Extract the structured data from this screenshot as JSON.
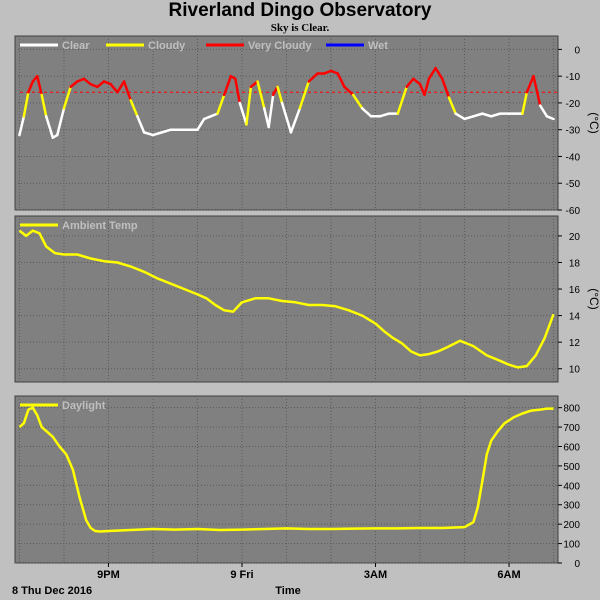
{
  "header": {
    "title": "Riverland Dingo Observatory",
    "subtitle": "Sky is Clear."
  },
  "footer": {
    "date_label": "8 Thu Dec 2016",
    "xlabel": "Time"
  },
  "colors": {
    "background": "#c0c0c0",
    "panel": "#808080",
    "grid": "#5a5a5a",
    "clear": "#ffffff",
    "cloudy": "#ffff00",
    "very_cloudy": "#ff0000",
    "wet": "#0000ff",
    "threshold": "#ff0000"
  },
  "chart_data": [
    {
      "type": "line",
      "legend": [
        "Clear",
        "Cloudy",
        "Very Cloudy",
        "Wet"
      ],
      "ylabel": "(°C)",
      "ylim": [
        -60,
        5
      ],
      "yticks": [
        0,
        -10,
        -20,
        -30,
        -40,
        -50,
        -60
      ],
      "threshold": -16,
      "x_ticks": [
        "9PM",
        "9 Fri",
        "3AM",
        "6AM"
      ],
      "x_tick_hours": [
        21,
        24,
        27,
        30
      ],
      "xlim_hours": [
        18.9,
        31.1
      ],
      "series": [
        {
          "x": [
            19.0,
            19.1,
            19.2,
            19.3,
            19.4,
            19.5,
            19.6,
            19.75,
            19.85,
            20.0,
            20.15,
            20.3,
            20.45,
            20.6,
            20.75,
            20.9,
            21.05,
            21.2,
            21.35,
            21.5,
            21.65,
            21.8,
            22.0,
            22.2,
            22.4,
            22.6,
            22.8,
            23.0,
            23.15,
            23.3,
            23.45,
            23.6,
            23.75,
            23.85,
            23.95,
            24.1,
            24.2,
            24.35,
            24.5,
            24.6,
            24.7,
            24.8,
            24.9,
            25.1,
            25.3,
            25.5,
            25.7,
            25.85,
            26.0,
            26.15,
            26.3,
            26.5,
            26.7,
            26.9,
            27.1,
            27.3,
            27.5,
            27.7,
            27.85,
            28.0,
            28.1,
            28.2,
            28.35,
            28.5,
            28.65,
            28.8,
            29.0,
            29.2,
            29.4,
            29.6,
            29.8,
            30.0,
            30.1,
            30.2,
            30.3,
            30.4,
            30.55,
            30.7,
            30.85,
            31.0
          ],
          "values": [
            -32,
            -25,
            -16,
            -12,
            -10,
            -17,
            -25,
            -33,
            -32,
            -22,
            -14,
            -12,
            -11,
            -13,
            -14,
            -12,
            -13,
            -16,
            -12,
            -19,
            -25,
            -31,
            -32,
            -31,
            -30,
            -30,
            -30,
            -30,
            -26,
            -25,
            -24,
            -17,
            -10,
            -11,
            -20,
            -28,
            -14,
            -12,
            -22,
            -29,
            -17,
            -14,
            -20,
            -31,
            -22,
            -12,
            -9,
            -9,
            -8,
            -9,
            -14,
            -17,
            -22,
            -25,
            -25,
            -24,
            -24,
            -14,
            -11,
            -13,
            -17,
            -11,
            -7,
            -11,
            -18,
            -24,
            -26,
            -25,
            -24,
            -25,
            -24,
            -24,
            -24,
            -24,
            -24,
            -16,
            -10,
            -21,
            -25,
            -26
          ]
        }
      ]
    },
    {
      "type": "line",
      "legend": [
        "Ambient Temp"
      ],
      "ylabel": "(°C)",
      "ylim": [
        9,
        21.5
      ],
      "yticks": [
        20,
        18,
        16,
        14,
        12,
        10
      ],
      "x_ticks": [
        "9PM",
        "9 Fri",
        "3AM",
        "6AM"
      ],
      "x_tick_hours": [
        21,
        24,
        27,
        30
      ],
      "xlim_hours": [
        18.9,
        31.1
      ],
      "series": [
        {
          "name": "Ambient Temp",
          "x": [
            19.0,
            19.15,
            19.3,
            19.45,
            19.6,
            19.8,
            20.0,
            20.3,
            20.6,
            20.9,
            21.2,
            21.5,
            21.8,
            22.1,
            22.4,
            22.7,
            23.0,
            23.2,
            23.4,
            23.6,
            23.8,
            24.0,
            24.3,
            24.6,
            24.9,
            25.2,
            25.5,
            25.8,
            26.1,
            26.4,
            26.7,
            27.0,
            27.2,
            27.4,
            27.6,
            27.8,
            28.0,
            28.2,
            28.4,
            28.6,
            28.9,
            29.2,
            29.5,
            29.8,
            30.0,
            30.2,
            30.4,
            30.6,
            30.8,
            31.0
          ],
          "values": [
            20.4,
            20.0,
            20.4,
            20.2,
            19.2,
            18.7,
            18.6,
            18.6,
            18.3,
            18.1,
            18.0,
            17.7,
            17.3,
            16.8,
            16.4,
            16.0,
            15.6,
            15.3,
            14.8,
            14.4,
            14.3,
            15.0,
            15.3,
            15.3,
            15.1,
            15.0,
            14.8,
            14.8,
            14.7,
            14.4,
            14.0,
            13.4,
            12.8,
            12.3,
            11.9,
            11.3,
            11.0,
            11.1,
            11.3,
            11.6,
            12.1,
            11.7,
            11.0,
            10.6,
            10.3,
            10.1,
            10.2,
            11.0,
            12.3,
            14.1
          ]
        }
      ]
    },
    {
      "type": "line",
      "legend": [
        "Daylight"
      ],
      "ylabel": "",
      "ylim": [
        0,
        860
      ],
      "yticks": [
        800,
        700,
        600,
        500,
        400,
        300,
        200,
        100,
        0
      ],
      "x_ticks": [
        "9PM",
        "9 Fri",
        "3AM",
        "6AM"
      ],
      "x_tick_hours": [
        21,
        24,
        27,
        30
      ],
      "xlim_hours": [
        18.9,
        31.1
      ],
      "series": [
        {
          "name": "Daylight",
          "x": [
            19.0,
            19.1,
            19.2,
            19.3,
            19.4,
            19.5,
            19.6,
            19.75,
            19.9,
            20.05,
            20.2,
            20.35,
            20.5,
            20.6,
            20.7,
            20.8,
            21.0,
            21.5,
            22.0,
            22.5,
            23.0,
            23.5,
            24.0,
            24.5,
            25.0,
            25.5,
            26.0,
            26.5,
            27.0,
            27.5,
            28.0,
            28.5,
            29.0,
            29.2,
            29.3,
            29.4,
            29.5,
            29.6,
            29.75,
            29.9,
            30.1,
            30.3,
            30.5,
            30.7,
            30.85,
            31.0
          ],
          "values": [
            700,
            720,
            790,
            800,
            760,
            700,
            680,
            650,
            600,
            560,
            480,
            340,
            220,
            180,
            165,
            162,
            165,
            170,
            175,
            172,
            175,
            170,
            172,
            175,
            178,
            175,
            175,
            177,
            178,
            178,
            180,
            180,
            185,
            210,
            290,
            420,
            560,
            630,
            680,
            720,
            750,
            770,
            785,
            790,
            795,
            795
          ]
        }
      ]
    }
  ]
}
